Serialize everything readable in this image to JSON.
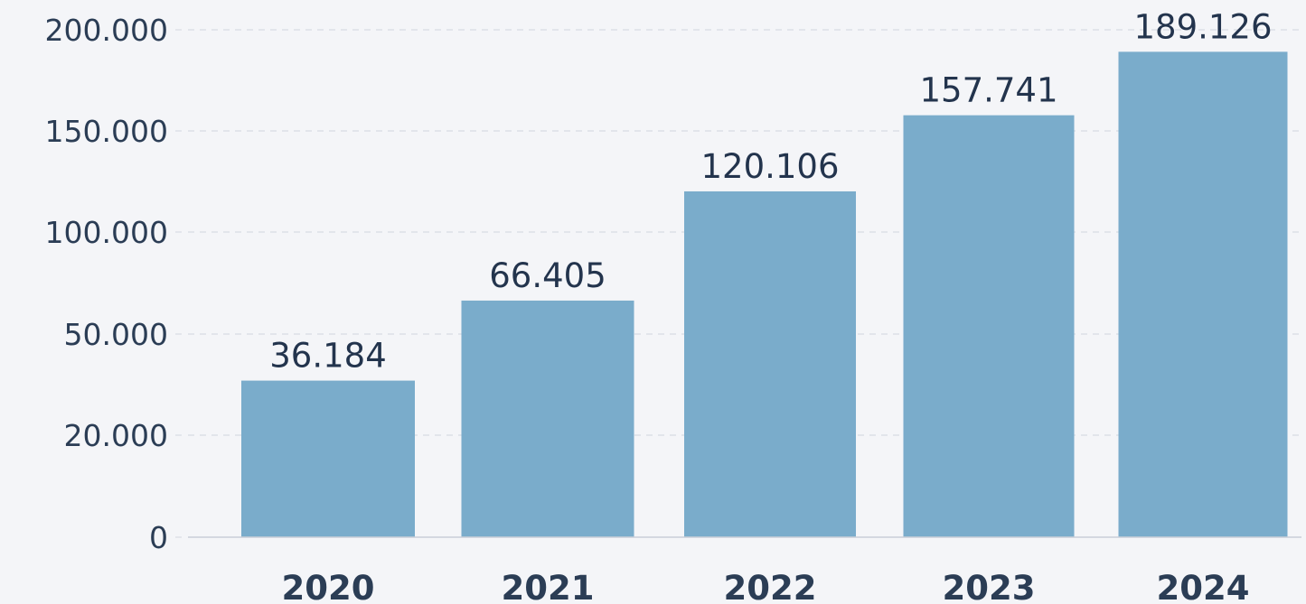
{
  "chart_data": {
    "type": "bar",
    "categories": [
      "2020",
      "2021",
      "2022",
      "2023",
      "2024"
    ],
    "values": [
      36184,
      66405,
      120106,
      157741,
      189126
    ],
    "value_labels": [
      "36.184",
      "66.405",
      "120.106",
      "157.741",
      "189.126"
    ],
    "y_ticks": [
      {
        "value": 0,
        "label": "0"
      },
      {
        "value": 20000,
        "label": "20.000"
      },
      {
        "value": 50000,
        "label": "50.000"
      },
      {
        "value": 100000,
        "label": "100.000"
      },
      {
        "value": 150000,
        "label": "150.000"
      },
      {
        "value": 200000,
        "label": "200.000"
      }
    ],
    "ylim": [
      0,
      200000
    ],
    "title": "",
    "xlabel": "",
    "ylabel": "",
    "grid": true,
    "legend": "none",
    "colors": {
      "bar": "#7aaccb",
      "background": "#f4f5f8",
      "text": "#2b3d55",
      "grid": "#d8dce3"
    }
  }
}
